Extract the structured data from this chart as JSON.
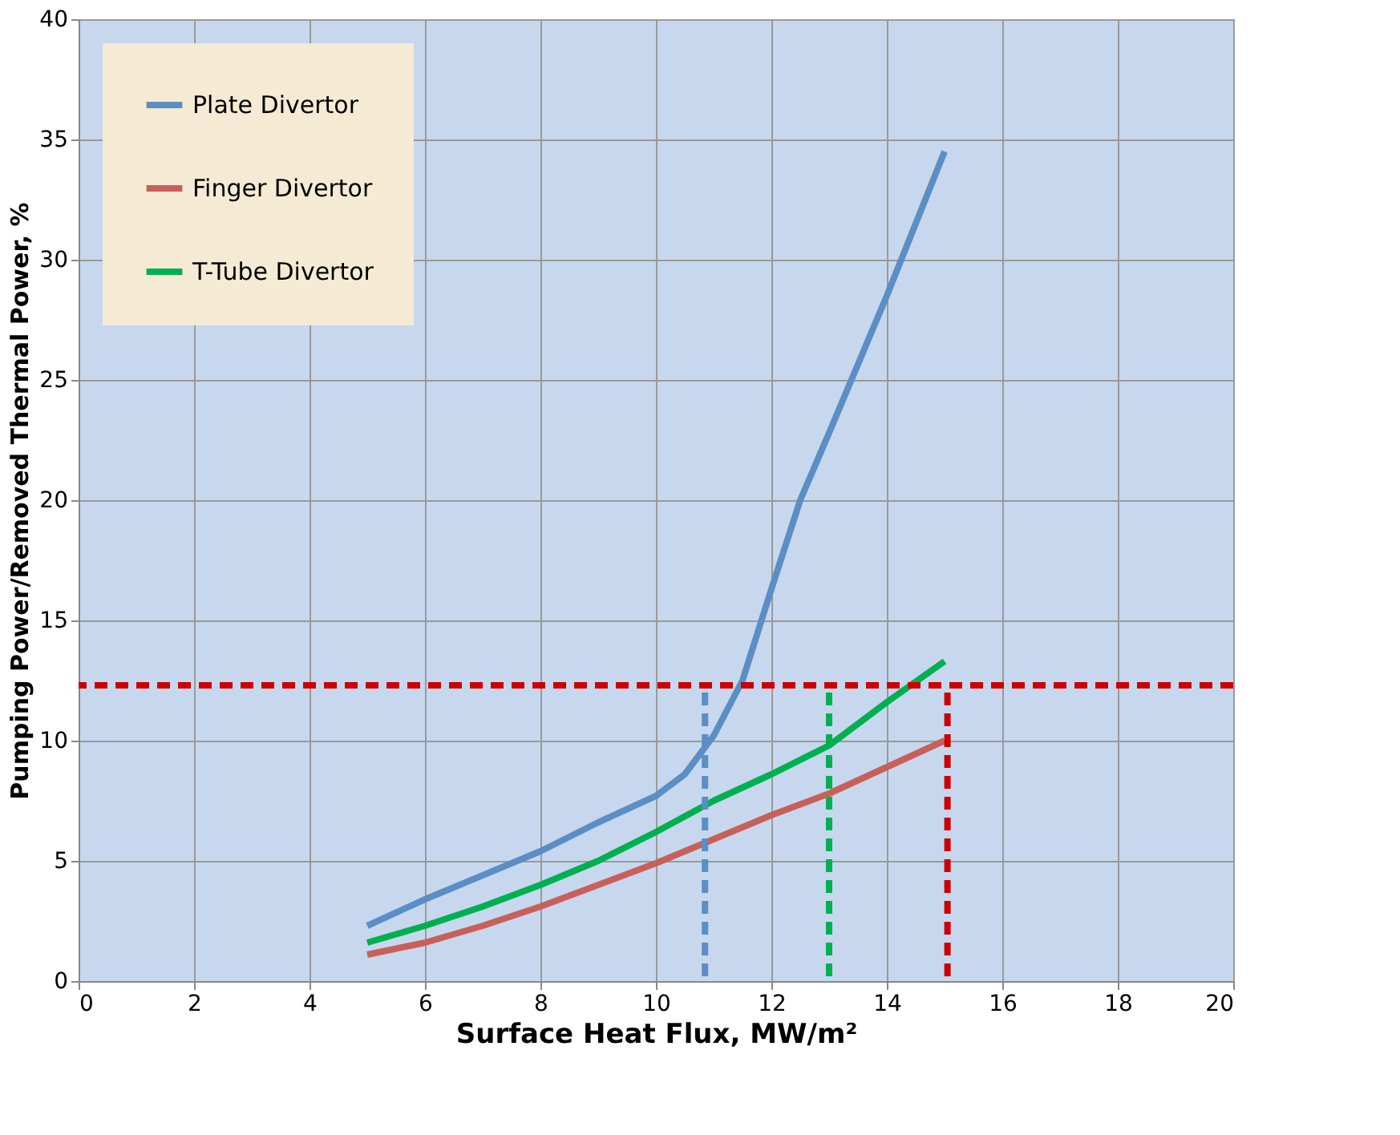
{
  "chart_data": {
    "type": "line",
    "xlabel": "Surface Heat Flux, MW/m²",
    "ylabel": "Pumping Power/Removed Thermal Power, %",
    "x": [
      5,
      6,
      7,
      8,
      9,
      10,
      10.5,
      11,
      11.5,
      12,
      12.5,
      13,
      14,
      15
    ],
    "series": [
      {
        "name": "Plate Divertor",
        "color": "#5b8ec4",
        "values": [
          2.3,
          3.4,
          4.4,
          5.4,
          6.6,
          7.7,
          8.6,
          10.2,
          12.5,
          16.3,
          20,
          22.8,
          28.5,
          34.5
        ]
      },
      {
        "name": "Finger Divertor",
        "color": "#c8605a",
        "x": [
          5,
          6,
          7,
          8,
          9,
          10,
          11,
          12,
          13,
          14,
          15
        ],
        "values": [
          1.1,
          1.6,
          2.3,
          3.1,
          4.0,
          4.9,
          5.9,
          6.9,
          7.8,
          8.9,
          10.0
        ]
      },
      {
        "name": "T-Tube Divertor",
        "color": "#00b050",
        "x": [
          5,
          6,
          7,
          8,
          9,
          10,
          11,
          12,
          13,
          14,
          15
        ],
        "values": [
          1.6,
          2.3,
          3.1,
          4.0,
          5.0,
          6.2,
          7.5,
          8.6,
          9.8,
          11.6,
          13.3
        ]
      },
      {
        "type": "line",
        "color": "#5b8ec4",
        "line_style": "dashed",
        "x": [
          10.85,
          10.85
        ],
        "values": [
          0.2,
          12.3
        ]
      },
      {
        "type": "line",
        "color": "#00b050",
        "line_style": "dashed",
        "x": [
          13,
          13
        ],
        "values": [
          0.2,
          12.3
        ]
      },
      {
        "type": "line",
        "color": "#cc0000",
        "line_style": "dashed",
        "x": [
          15.05,
          15.05
        ],
        "values": [
          0.2,
          12.3
        ]
      }
    ],
    "ref_lines": [
      {
        "axis": "y",
        "value": 12.3,
        "color": "#cc0000",
        "line_style": "dashed"
      }
    ],
    "xlim": [
      0,
      20
    ],
    "xticks": [
      0,
      2,
      4,
      6,
      8,
      10,
      12,
      14,
      16,
      18,
      20
    ],
    "ylim": [
      0,
      40
    ],
    "yticks": [
      0,
      5,
      10,
      15,
      20,
      25,
      30,
      35,
      40
    ],
    "grid": true,
    "legend": "top left",
    "line_style": "solid",
    "marker": "none"
  }
}
